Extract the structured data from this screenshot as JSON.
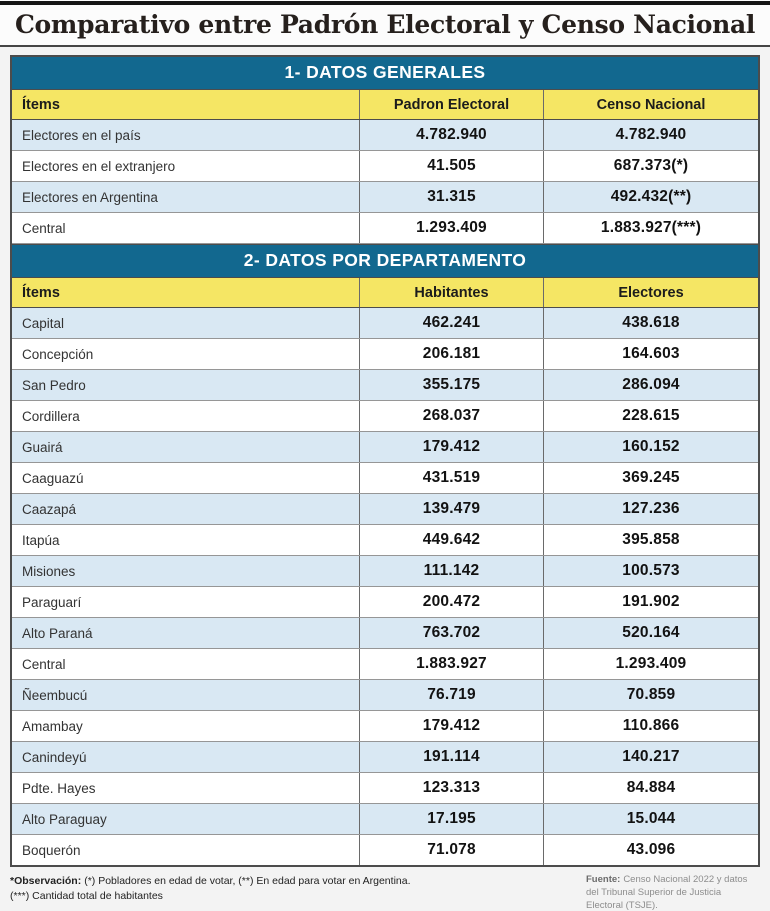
{
  "title": "Comparativo entre Padrón Electoral y Censo Nacional",
  "chart_data": [
    {
      "type": "table",
      "title": "1- DATOS GENERALES",
      "columns": [
        "Ítems",
        "Padron Electoral",
        "Censo Nacional"
      ],
      "rows": [
        [
          "Electores en el país",
          "4.782.940",
          "4.782.940"
        ],
        [
          "Electores en el extranjero",
          "41.505",
          "687.373(*)"
        ],
        [
          "Electores en Argentina",
          "31.315",
          "492.432(**)"
        ],
        [
          "Central",
          "1.293.409",
          "1.883.927(***)"
        ]
      ]
    },
    {
      "type": "table",
      "title": "2- DATOS POR DEPARTAMENTO",
      "columns": [
        "Ítems",
        "Habitantes",
        "Electores"
      ],
      "rows": [
        [
          "Capital",
          "462.241",
          "438.618"
        ],
        [
          "Concepción",
          "206.181",
          "164.603"
        ],
        [
          "San Pedro",
          "355.175",
          "286.094"
        ],
        [
          "Cordillera",
          "268.037",
          "228.615"
        ],
        [
          "Guairá",
          "179.412",
          "160.152"
        ],
        [
          "Caaguazú",
          "431.519",
          "369.245"
        ],
        [
          "Caazapá",
          "139.479",
          "127.236"
        ],
        [
          "Itapúa",
          "449.642",
          "395.858"
        ],
        [
          "Misiones",
          "111.142",
          "100.573"
        ],
        [
          "Paraguarí",
          "200.472",
          "191.902"
        ],
        [
          "Alto Paraná",
          "763.702",
          "520.164"
        ],
        [
          "Central",
          "1.883.927",
          "1.293.409"
        ],
        [
          "Ñeembucú",
          "76.719",
          "70.859"
        ],
        [
          "Amambay",
          "179.412",
          "110.866"
        ],
        [
          "Canindeyú",
          "191.114",
          "140.217"
        ],
        [
          "Pdte. Hayes",
          "123.313",
          "84.884"
        ],
        [
          "Alto Paraguay",
          "17.195",
          "15.044"
        ],
        [
          "Boquerón",
          "71.078",
          "43.096"
        ]
      ]
    }
  ],
  "footnotes": {
    "observation_label": "*Observación:",
    "observation_text": "(*) Pobladores en edad de votar, (**) En edad para votar en Argentina.",
    "observation_line2": "(***) Cantidad total de habitantes",
    "source_label": "Fuente:",
    "source_text": "Censo Nacional 2022 y  datos del Tribunal Superior de Justicia Electoral (TSJE)."
  },
  "colors": {
    "section_header_blue": "#12688f",
    "column_header_yellow": "#f5e664",
    "row_stripe_blue": "#d9e8f3"
  }
}
